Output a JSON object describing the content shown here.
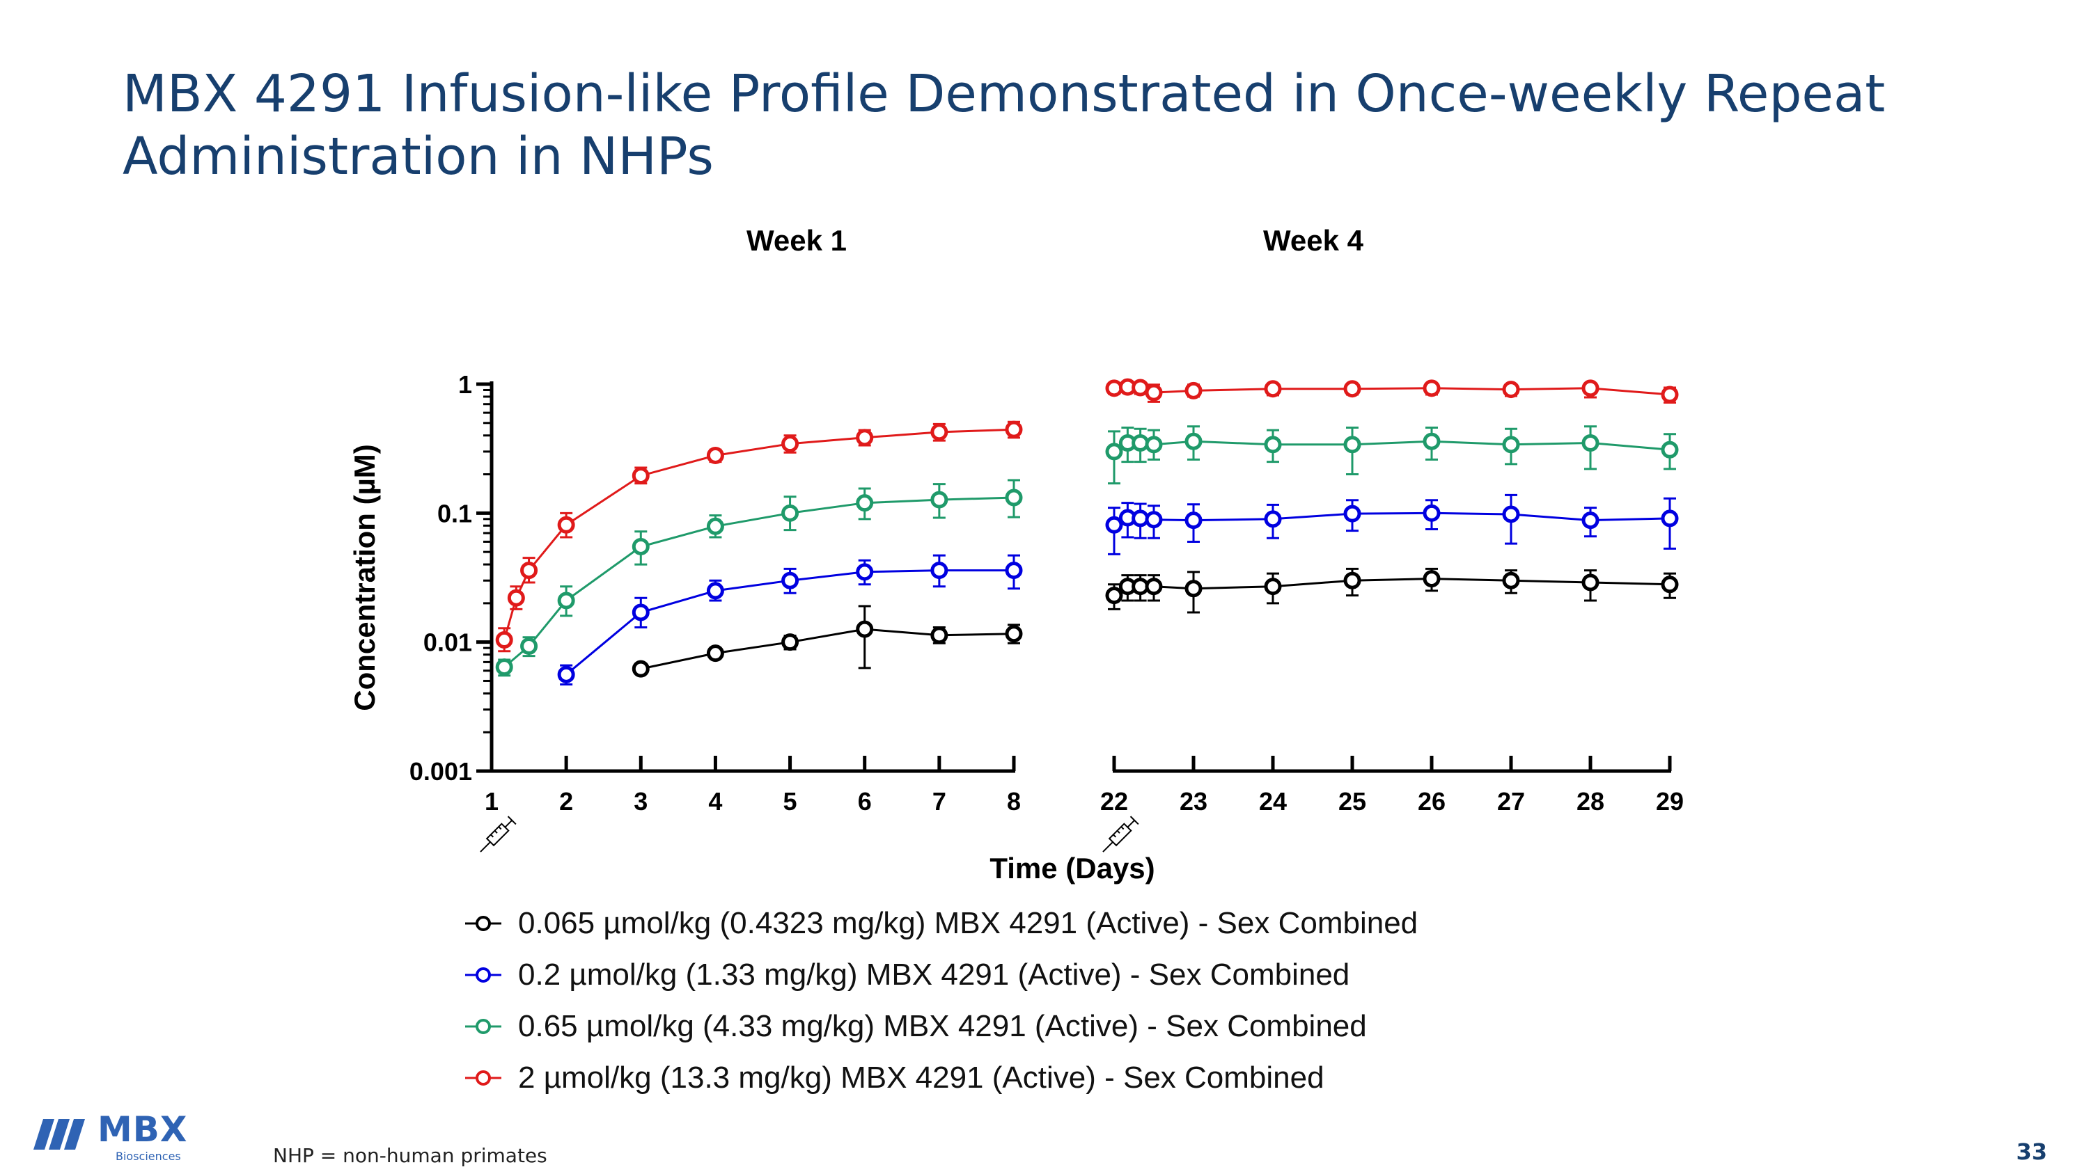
{
  "slide": {
    "title": "MBX 4291 Infusion-like Profile Demonstrated in Once-weekly Repeat Administration in NHPs",
    "footnote": "NHP = non-human primates",
    "page_number": "33",
    "logo_text": "MBX",
    "logo_subtext": "Biosciences"
  },
  "chart_data": {
    "type": "line",
    "ylabel": "Concentration (µM)",
    "xlabel": "Time (Days)",
    "yscale": "log",
    "ylim": [
      0.001,
      1
    ],
    "y_ticks": [
      "1",
      "0.1",
      "0.01",
      "0.001"
    ],
    "panels": [
      {
        "title": "Week 1",
        "xlim": [
          1,
          8
        ],
        "x_ticks": [
          "1",
          "2",
          "3",
          "4",
          "5",
          "6",
          "7",
          "8"
        ],
        "dose_marker_day": 1
      },
      {
        "title": "Week 4",
        "xlim": [
          22,
          29
        ],
        "x_ticks": [
          "22",
          "23",
          "24",
          "25",
          "26",
          "27",
          "28",
          "29"
        ],
        "dose_marker_day": 22
      }
    ],
    "series": [
      {
        "name": "0.065 µmol/kg (0.4323 mg/kg) MBX 4291 (Active) - Sex Combined",
        "color": "#000000",
        "week1": {
          "x": [
            3,
            4,
            5,
            6,
            7,
            8
          ],
          "y": [
            0.0062,
            0.0082,
            0.01,
            0.0126,
            0.0113,
            0.0116
          ],
          "err_low": [
            0.006,
            0.0078,
            0.0088,
            0.0063,
            0.0098,
            0.0098
          ],
          "err_high": [
            0.0064,
            0.0087,
            0.0112,
            0.019,
            0.013,
            0.0136
          ]
        },
        "week4": {
          "x": [
            22,
            22.17,
            22.33,
            22.5,
            23,
            24,
            25,
            26,
            27,
            28,
            29
          ],
          "y": [
            0.023,
            0.027,
            0.027,
            0.027,
            0.026,
            0.027,
            0.03,
            0.031,
            0.03,
            0.029,
            0.028
          ],
          "err_low": [
            0.018,
            0.021,
            0.021,
            0.021,
            0.017,
            0.02,
            0.023,
            0.025,
            0.024,
            0.021,
            0.022
          ],
          "err_high": [
            0.028,
            0.033,
            0.033,
            0.033,
            0.035,
            0.034,
            0.037,
            0.037,
            0.036,
            0.036,
            0.034
          ]
        }
      },
      {
        "name": "0.2 µmol/kg (1.33 mg/kg) MBX 4291 (Active) - Sex Combined",
        "color": "#0000e0",
        "week1": {
          "x": [
            2,
            3,
            4,
            5,
            6,
            7,
            8
          ],
          "y": [
            0.0056,
            0.017,
            0.025,
            0.03,
            0.035,
            0.036,
            0.036
          ],
          "err_low": [
            0.0047,
            0.013,
            0.021,
            0.024,
            0.028,
            0.027,
            0.026
          ],
          "err_high": [
            0.0066,
            0.022,
            0.03,
            0.037,
            0.043,
            0.047,
            0.047
          ]
        },
        "week4": {
          "x": [
            22,
            22.17,
            22.33,
            22.5,
            23,
            24,
            25,
            26,
            27,
            28,
            29
          ],
          "y": [
            0.081,
            0.092,
            0.091,
            0.089,
            0.088,
            0.09,
            0.099,
            0.1,
            0.098,
            0.088,
            0.091
          ],
          "err_low": [
            0.048,
            0.065,
            0.064,
            0.064,
            0.06,
            0.064,
            0.073,
            0.075,
            0.058,
            0.066,
            0.053
          ],
          "err_high": [
            0.11,
            0.12,
            0.118,
            0.114,
            0.117,
            0.116,
            0.126,
            0.126,
            0.138,
            0.11,
            0.13
          ]
        }
      },
      {
        "name": "0.65 µmol/kg (4.33 mg/kg) MBX 4291 (Active) - Sex Combined",
        "color": "#1f9a6a",
        "week1": {
          "x": [
            1.17,
            1.5,
            2,
            3,
            4,
            5,
            6,
            7,
            8
          ],
          "y": [
            0.0064,
            0.0093,
            0.021,
            0.055,
            0.079,
            0.1,
            0.12,
            0.127,
            0.132
          ],
          "err_low": [
            0.0055,
            0.0078,
            0.016,
            0.04,
            0.065,
            0.074,
            0.09,
            0.092,
            0.093
          ],
          "err_high": [
            0.0073,
            0.0109,
            0.027,
            0.072,
            0.096,
            0.134,
            0.155,
            0.168,
            0.18
          ]
        },
        "week4": {
          "x": [
            22,
            22.17,
            22.33,
            22.5,
            23,
            24,
            25,
            26,
            27,
            28,
            29
          ],
          "y": [
            0.3,
            0.35,
            0.35,
            0.34,
            0.36,
            0.34,
            0.34,
            0.36,
            0.34,
            0.35,
            0.31
          ],
          "err_low": [
            0.17,
            0.25,
            0.25,
            0.26,
            0.26,
            0.25,
            0.2,
            0.26,
            0.24,
            0.22,
            0.22
          ],
          "err_high": [
            0.43,
            0.46,
            0.45,
            0.44,
            0.47,
            0.44,
            0.46,
            0.46,
            0.45,
            0.47,
            0.41
          ]
        }
      },
      {
        "name": "2 µmol/kg (13.3 mg/kg) MBX 4291 (Active) - Sex Combined",
        "color": "#e01a1a",
        "week1": {
          "x": [
            1.17,
            1.33,
            1.5,
            2,
            3,
            4,
            5,
            6,
            7,
            8
          ],
          "y": [
            0.0104,
            0.022,
            0.036,
            0.081,
            0.195,
            0.28,
            0.345,
            0.385,
            0.425,
            0.445
          ],
          "err_low": [
            0.0085,
            0.018,
            0.029,
            0.065,
            0.17,
            0.25,
            0.295,
            0.335,
            0.365,
            0.385
          ],
          "err_high": [
            0.0128,
            0.027,
            0.045,
            0.1,
            0.225,
            0.31,
            0.4,
            0.44,
            0.49,
            0.51
          ]
        },
        "week4": {
          "x": [
            22,
            22.17,
            22.33,
            22.5,
            23,
            24,
            25,
            26,
            27,
            28,
            29
          ],
          "y": [
            0.93,
            0.95,
            0.94,
            0.86,
            0.89,
            0.92,
            0.92,
            0.93,
            0.91,
            0.93,
            0.83
          ],
          "err_low": [
            0.84,
            0.87,
            0.84,
            0.73,
            0.8,
            0.82,
            0.83,
            0.83,
            0.81,
            0.79,
            0.72
          ],
          "err_high": [
            0.99,
            0.99,
            0.99,
            0.99,
            0.99,
            0.99,
            0.99,
            0.99,
            0.99,
            0.99,
            0.94
          ]
        }
      }
    ]
  }
}
